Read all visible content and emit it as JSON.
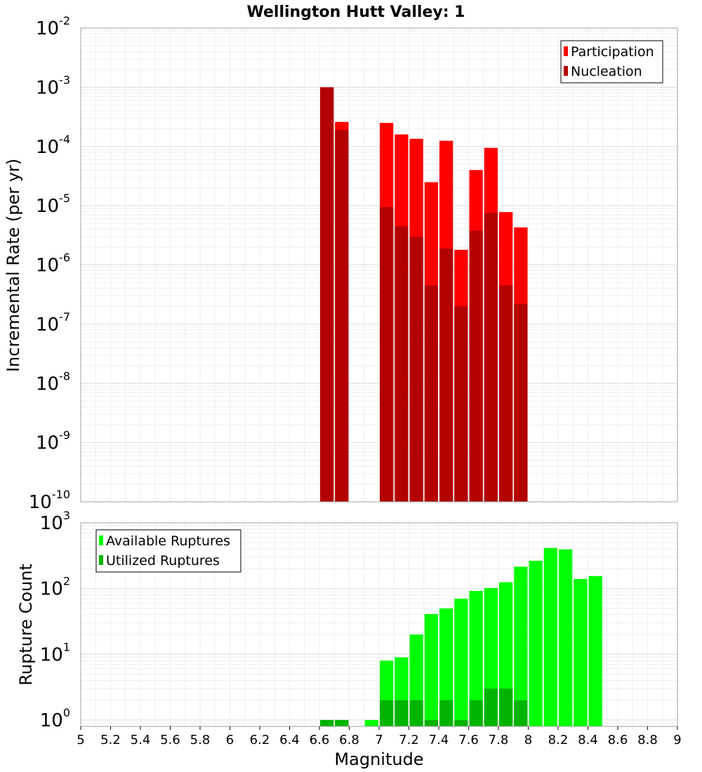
{
  "chart_data": [
    {
      "type": "bar",
      "title": "Wellington Hutt Valley: 1",
      "xlabel": "Magnitude",
      "ylabel": "Incremental Rate (per yr)",
      "yscale": "log",
      "ylim": [
        1e-10,
        0.01
      ],
      "xlim": [
        5,
        9
      ],
      "grid": true,
      "legend_position": "top-right",
      "y_tick_exponents": [
        "-10",
        "-9",
        "-8",
        "-7",
        "-6",
        "-5",
        "-4",
        "-3",
        "-2"
      ],
      "y_tick_base": "10",
      "series": [
        {
          "name": "Participation",
          "color": "#ff0000",
          "x": [
            6.65,
            6.75,
            7.05,
            7.15,
            7.25,
            7.35,
            7.45,
            7.55,
            7.65,
            7.75,
            7.85,
            7.95
          ],
          "values": [
            0.001,
            0.00026,
            0.00025,
            0.00016,
            0.000135,
            2.5e-05,
            0.000125,
            1.8e-06,
            4e-05,
            9.5e-05,
            7.8e-06,
            4.3e-06
          ]
        },
        {
          "name": "Nucleation",
          "color": "#b30000",
          "x": [
            6.65,
            6.75,
            7.05,
            7.15,
            7.25,
            7.35,
            7.45,
            7.55,
            7.65,
            7.75,
            7.85,
            7.95
          ],
          "values": [
            0.001,
            0.00019,
            9.5e-06,
            4.5e-06,
            3e-06,
            4.5e-07,
            1.9e-06,
            2e-07,
            3.8e-06,
            7.6e-06,
            4.5e-07,
            2.2e-07
          ]
        }
      ]
    },
    {
      "type": "bar",
      "xlabel": "Magnitude",
      "ylabel": "Rupture Count",
      "yscale": "log",
      "ylim": [
        0.8,
        1000
      ],
      "xlim": [
        5,
        9
      ],
      "grid": true,
      "legend_position": "top-left",
      "x_ticks": [
        "5",
        "5.2",
        "5.4",
        "5.6",
        "5.8",
        "6",
        "6.2",
        "6.4",
        "6.6",
        "6.8",
        "7",
        "7.2",
        "7.4",
        "7.6",
        "7.8",
        "8",
        "8.2",
        "8.4",
        "8.6",
        "8.8",
        "9"
      ],
      "y_tick_exponents": [
        "0",
        "1",
        "2",
        "3"
      ],
      "y_tick_base": "10",
      "series": [
        {
          "name": "Available Ruptures",
          "color": "#00ff00",
          "x": [
            6.65,
            6.75,
            6.95,
            7.05,
            7.15,
            7.25,
            7.35,
            7.45,
            7.55,
            7.65,
            7.75,
            7.85,
            7.95,
            8.05,
            8.15,
            8.25,
            8.35,
            8.45
          ],
          "values": [
            1,
            1,
            1,
            8,
            9,
            20,
            41,
            50,
            70,
            92,
            102,
            125,
            215,
            265,
            415,
            395,
            140,
            155
          ]
        },
        {
          "name": "Utilized Ruptures",
          "color": "#00b300",
          "x": [
            6.65,
            6.75,
            6.95,
            7.05,
            7.15,
            7.25,
            7.35,
            7.45,
            7.55,
            7.65,
            7.75,
            7.85,
            7.95
          ],
          "values": [
            1,
            1,
            0,
            2,
            2,
            2,
            1,
            2,
            1,
            2,
            3,
            3,
            2
          ]
        }
      ]
    }
  ]
}
